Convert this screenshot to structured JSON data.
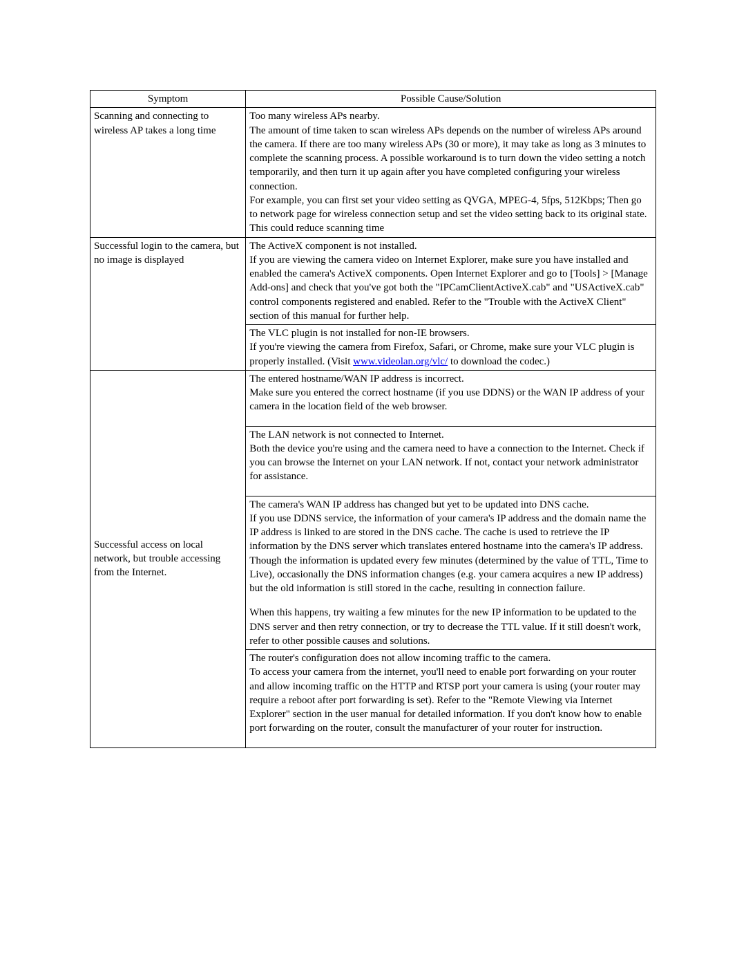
{
  "table": {
    "headers": {
      "symptom": "Symptom",
      "cause": "Possible Cause/Solution"
    },
    "rows": {
      "r1": {
        "symptom": "Scanning and connecting to wireless AP takes a long time",
        "cause_title": "Too many wireless APs nearby.",
        "cause_p1": "The amount of time taken to scan wireless APs depends on the number of wireless APs around the camera. If there are too many wireless APs (30 or more), it may take as long as 3 minutes to complete the scanning process. A possible workaround is to turn down the video setting a notch temporarily, and then turn it up again after you have completed configuring your wireless connection.",
        "cause_p2": "For example, you can first set your video setting as QVGA, MPEG-4, 5fps, 512Kbps; Then go to network page for wireless connection setup and set the video setting back to its original state. This could reduce scanning time"
      },
      "r2": {
        "symptom": "Successful login to the camera, but no image is displayed",
        "c1_title": "The ActiveX component is not installed.",
        "c1_body": "If you are viewing the camera video on Internet Explorer, make sure you have installed and enabled the camera's ActiveX components. Open Internet Explorer and go to [Tools] > [Manage Add-ons] and check that you've got both the \"IPCamClientActiveX.cab\" and \"USActiveX.cab\" control components registered and enabled. Refer to the \"Trouble with the ActiveX Client\" section of this manual for further help.",
        "c2_title": "The VLC plugin is not installed for non-IE browsers.",
        "c2_pre": "If you're viewing the camera from Firefox, Safari, or Chrome, make sure your VLC plugin is properly installed. (Visit ",
        "c2_link": "www.videolan.org/vlc/",
        "c2_post": " to download the codec.)"
      },
      "r3": {
        "symptom": "Successful access on local network, but trouble accessing from the Internet.",
        "c1_title": "The entered hostname/WAN IP address is incorrect.",
        "c1_body": "Make sure you entered the correct hostname (if you use DDNS) or the WAN IP address of your camera in the location field of the web browser.",
        "c2_title": "The LAN network is not connected to Internet.",
        "c2_body": "Both the device you're using and the camera need to have a connection to the Internet. Check if you can browse the Internet on your LAN network. If not, contact your network administrator for assistance.",
        "c3_title": "The camera's WAN IP address has changed but yet to be updated into DNS cache.",
        "c3_body1": "If you use DDNS service, the information of your camera's IP address and the domain name the IP address is linked to are stored in the DNS cache. The cache is used to retrieve the IP information by the DNS server which translates entered hostname into the camera's IP address. Though the information is updated every few minutes (determined by the value of TTL, Time to Live), occasionally the DNS information changes (e.g. your camera acquires a new IP address) but the old information is still stored in the cache, resulting in connection failure.",
        "c3_body2": "When this happens, try waiting a few minutes for the new IP information to be updated to the DNS server and then retry connection, or try to decrease the TTL value. If it still doesn't work, refer to other possible causes and solutions.",
        "c4_title": "The router's configuration does not allow incoming traffic to the camera.",
        "c4_body": "To access your camera from the internet, you'll need to enable port forwarding on your router and allow incoming traffic on the HTTP and RTSP port your camera is using (your router may require a reboot after port forwarding is set). Refer to the \"Remote Viewing via Internet Explorer\" section in the user manual for detailed information. If you don't know how to enable port forwarding on the router, consult the manufacturer of your router for instruction."
      }
    }
  }
}
